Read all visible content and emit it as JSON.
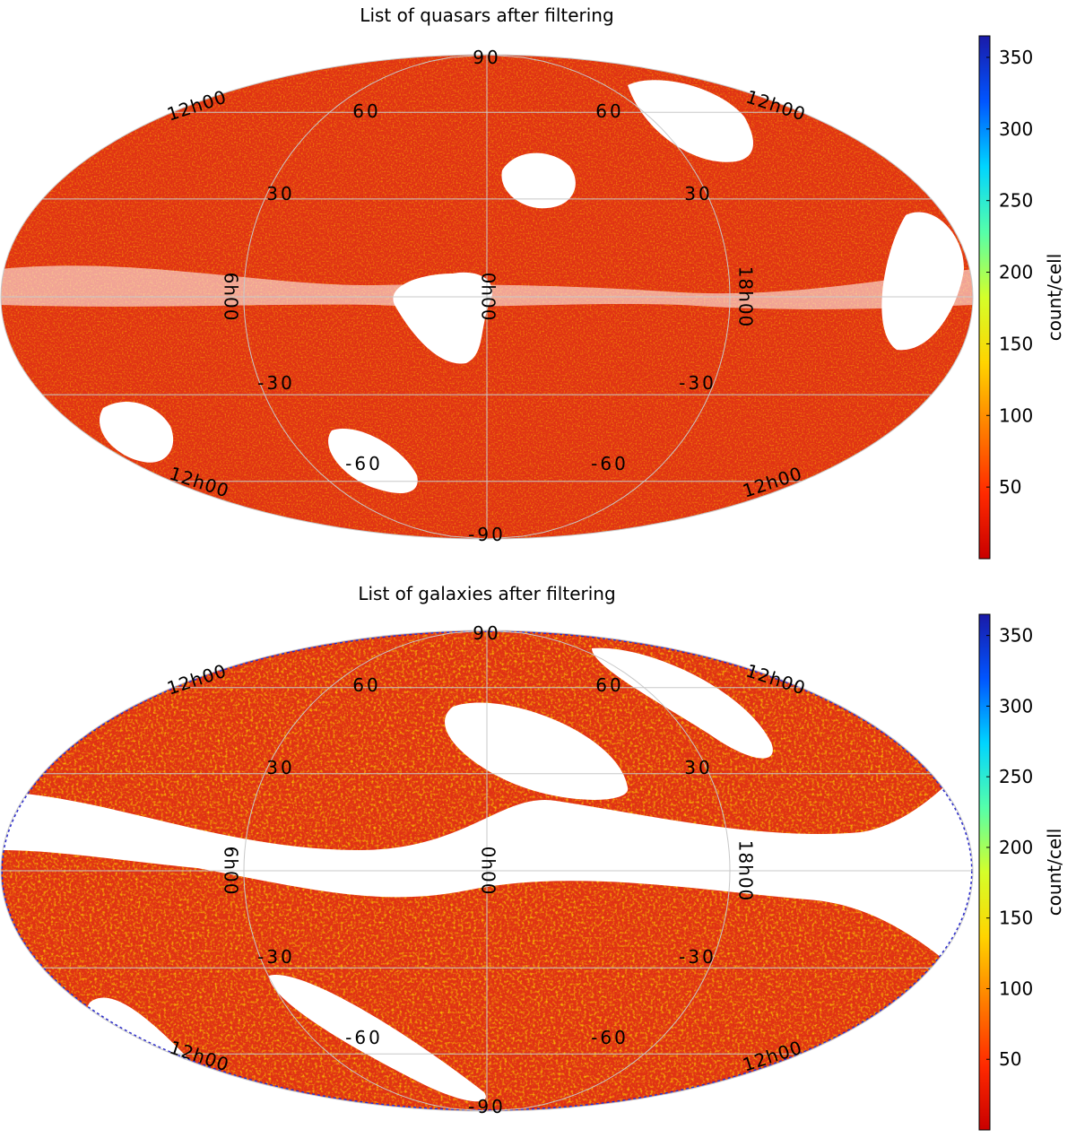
{
  "colors": {
    "colormap": [
      "#c80000",
      "#ff2a00",
      "#ff7f00",
      "#ffd400",
      "#d4ff2a",
      "#55ffaa",
      "#00d4ff",
      "#0055ff",
      "#1a1aa8"
    ],
    "map_fill": "#e63c14",
    "outline_points": "#2a2acc",
    "grid": "#c8c8c8"
  },
  "chart_data": [
    {
      "type": "heatmap",
      "projection": "mollweide",
      "title": "List of quasars after filtering",
      "colorbar": {
        "label": "count/cell",
        "ticks": [
          50,
          100,
          150,
          200,
          250,
          300,
          350
        ],
        "range": [
          0,
          365
        ]
      },
      "latitude_labels": [
        "90",
        "60",
        "30",
        "-30",
        "-60",
        "-90",
        "60",
        "30",
        "-30",
        "-60"
      ],
      "longitude_labels": [
        "12h00",
        "12h00",
        "6h00",
        "0h00",
        "18h00",
        "12h00",
        "12h00"
      ],
      "grid": true,
      "typical_count_per_cell": 50
    },
    {
      "type": "heatmap",
      "projection": "mollweide",
      "title": "List of galaxies after filtering",
      "colorbar": {
        "label": "count/cell",
        "ticks": [
          50,
          100,
          150,
          200,
          250,
          300,
          350
        ],
        "range": [
          0,
          365
        ]
      },
      "latitude_labels": [
        "90",
        "60",
        "30",
        "-30",
        "-60",
        "-90",
        "60",
        "30",
        "-30",
        "-60"
      ],
      "longitude_labels": [
        "12h00",
        "12h00",
        "6h00",
        "0h00",
        "18h00",
        "12h00",
        "12h00"
      ],
      "grid": true,
      "typical_count_per_cell": 65
    }
  ]
}
